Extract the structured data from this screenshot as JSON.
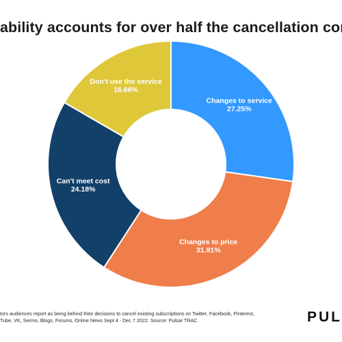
{
  "title": "ability accounts for over half the cancellation convers",
  "chart_data": {
    "type": "pie",
    "subtype": "donut",
    "title": "ability accounts for over half the cancellation convers",
    "slices": [
      {
        "label": "Changes to service",
        "value": 27.25,
        "display": "27.25%",
        "color": "#3399FF",
        "text_color": "#ffffff"
      },
      {
        "label": "Changes to price",
        "value": 31.91,
        "display": "31.91%",
        "color": "#F07E4A",
        "text_color": "#ffffff"
      },
      {
        "label": "Can't meet cost",
        "value": 24.18,
        "display": "24.18%",
        "color": "#124069",
        "text_color": "#ffffff"
      },
      {
        "label": "Don't use the service",
        "value": 16.66,
        "display": "16.66%",
        "color": "#DFC73A",
        "text_color": "#ffffff"
      }
    ],
    "legend": "none"
  },
  "footnote": {
    "line1": "tors audiences report as being behind their decisions to cancel existing subscriptions on Twitter, Facebook, Pinterest,",
    "line2": "Tube, VK, Sermo, Blogs, Forums, Online News Sept 4 - Dec 7 2022. Source: Pulsar TRAC"
  },
  "brand": "PUL"
}
